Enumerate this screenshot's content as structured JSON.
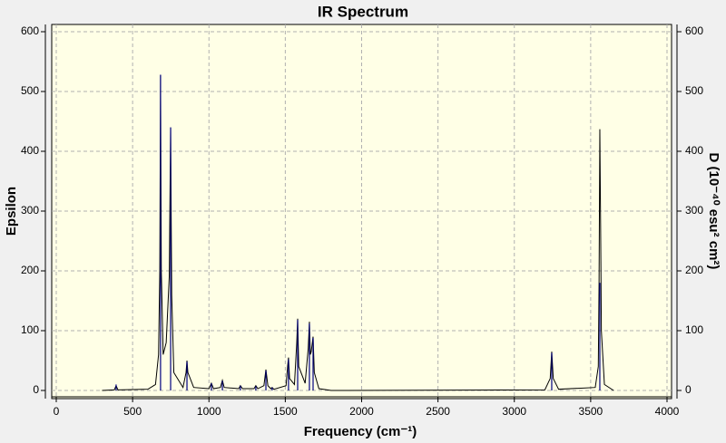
{
  "chart_data": {
    "type": "line",
    "title": "IR Spectrum",
    "xlabel": "Frequency (cm⁻¹)",
    "ylabel": "Epsilon",
    "y2label": "D (10⁻⁴⁰ esu² cm²)",
    "xlim": [
      0,
      4000
    ],
    "xticks": [
      0,
      500,
      1000,
      1500,
      2000,
      2500,
      3000,
      3500,
      4000
    ],
    "ylim": [
      0,
      600
    ],
    "yticks": [
      0,
      100,
      200,
      300,
      400,
      500,
      600
    ],
    "y2lim": [
      0,
      600
    ],
    "y2ticks": [
      0,
      100,
      200,
      300,
      400,
      500,
      600
    ],
    "grid": true,
    "series": [
      {
        "color": "#000000",
        "x": [
          300,
          380,
          392,
          404,
          600,
          650,
          670,
          678,
          683,
          688,
          700,
          720,
          740,
          749,
          756,
          770,
          830,
          850,
          856,
          862,
          900,
          1000,
          1016,
          1030,
          1075,
          1088,
          1100,
          1195,
          1206,
          1220,
          1295,
          1307,
          1320,
          1360,
          1373,
          1386,
          1405,
          1414,
          1425,
          1505,
          1515,
          1521,
          1528,
          1560,
          1575,
          1581,
          1588,
          1630,
          1650,
          1658,
          1664,
          1670,
          1682,
          1690,
          1720,
          1800,
          3200,
          3235,
          3245,
          3255,
          3290,
          3530,
          3550,
          3555,
          3560,
          3565,
          3570,
          3590,
          3650
        ],
        "values": [
          0,
          1,
          8,
          1,
          2,
          10,
          60,
          200,
          528,
          200,
          60,
          80,
          190,
          440,
          160,
          30,
          5,
          30,
          50,
          30,
          5,
          3,
          12,
          3,
          5,
          17,
          5,
          3,
          8,
          3,
          3,
          8,
          3,
          8,
          35,
          8,
          3,
          5,
          2,
          8,
          40,
          55,
          20,
          10,
          80,
          120,
          40,
          12,
          70,
          115,
          60,
          65,
          90,
          30,
          3,
          0,
          1,
          20,
          65,
          20,
          2,
          5,
          40,
          180,
          437,
          280,
          100,
          10,
          0
        ]
      },
      {
        "color": "#000080",
        "axis": "y2",
        "mark": "stick",
        "x": [
          392,
          683,
          749,
          856,
          1016,
          1088,
          1206,
          1307,
          1373,
          1414,
          1521,
          1581,
          1658,
          1682,
          3245,
          3560
        ],
        "values": [
          10,
          528,
          440,
          48,
          12,
          16,
          8,
          7,
          33,
          5,
          52,
          118,
          112,
          88,
          63,
          180
        ]
      }
    ]
  }
}
